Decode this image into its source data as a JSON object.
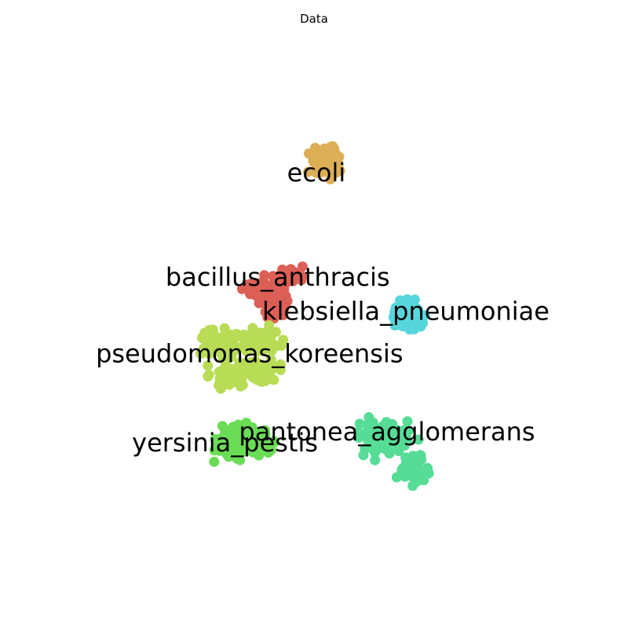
{
  "chart_data": {
    "type": "scatter",
    "title": "Data",
    "xlabel": "",
    "ylabel": "",
    "axes_visible": false,
    "grid": false,
    "legend": "none",
    "x_range": [
      0,
      100
    ],
    "y_range": [
      0,
      100
    ],
    "series": [
      {
        "name": "ecoli",
        "color": "#dcae56",
        "center": [
          50,
          23
        ],
        "spread": [
          13.5,
          8.5
        ],
        "count": 130
      },
      {
        "name": "bacillus_anthracis",
        "color": "#dc5f56",
        "center": [
          41,
          45.5
        ],
        "spread": [
          15,
          9
        ],
        "count": 130
      },
      {
        "name": "klebsiella_pneumoniae",
        "color": "#56d6dc",
        "center": [
          71,
          50
        ],
        "spread": [
          14,
          9
        ],
        "count": 130
      },
      {
        "name": "pseudomonas_koreensis",
        "color": "#b8dc56",
        "center": [
          33,
          58
        ],
        "spread": [
          21,
          13
        ],
        "count": 190
      },
      {
        "name": "pantonea_agglomerans",
        "color": "#56dc96",
        "center": [
          66,
          73.5
        ],
        "spread": [
          17,
          13
        ],
        "count": 170
      },
      {
        "name": "yersinia_pestis",
        "color": "#6bdc56",
        "center": [
          32,
          73.5
        ],
        "spread": [
          17,
          11
        ],
        "count": 150
      }
    ],
    "labels": [
      {
        "text": "ecoli",
        "x": 50.5,
        "y": 25
      },
      {
        "text": "bacillus_anthracis",
        "x": 42.3,
        "y": 43.5
      },
      {
        "text": "klebsiella_pneumoniae",
        "x": 69.5,
        "y": 49.5
      },
      {
        "text": "pseudomonas_koreensis",
        "x": 36.3,
        "y": 57
      },
      {
        "text": "pantonea_agglomerans",
        "x": 65.5,
        "y": 70.8
      },
      {
        "text": "yersinia_pestis",
        "x": 31.1,
        "y": 72.8
      }
    ]
  }
}
